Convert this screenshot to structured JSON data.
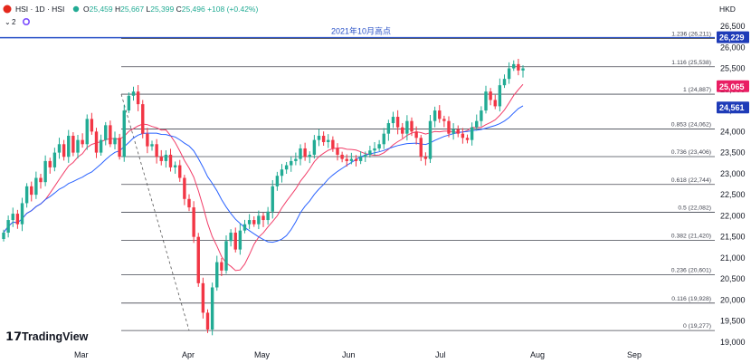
{
  "header": {
    "symbol": "HSI · 1D · HSI",
    "ohlc": [
      {
        "k": "O",
        "v": "25,459"
      },
      {
        "k": "H",
        "v": "25,667"
      },
      {
        "k": "L",
        "v": "25,399"
      },
      {
        "k": "C",
        "v": "25,496 +108 (+0.42%)"
      }
    ],
    "indicator_count": "2",
    "currency": "HKD",
    "logo_text": "TradingView"
  },
  "colors": {
    "up": "#22ab94",
    "down": "#f23645",
    "ma_fast": "#f23f6a",
    "ma_slow": "#2962ff",
    "label_red": "#e91e63",
    "label_blue": "#1e3bb8"
  },
  "chart_data": {
    "type": "candlestick",
    "y_axis": {
      "min": 19000,
      "max": 26500,
      "ticks": [
        19000,
        19500,
        20000,
        20500,
        21000,
        21500,
        22000,
        22500,
        23000,
        23500,
        24000,
        24500,
        25000,
        25500,
        26000,
        26500
      ]
    },
    "x_axis": {
      "labels": [
        "Mar",
        "Apr",
        "May",
        "Jun",
        "Jul",
        "Aug",
        "Sep"
      ]
    },
    "annotation": "2021年10月高点",
    "high_line": 26229,
    "fib_levels": [
      {
        "label": "1.236 (26,211)",
        "value": 26211
      },
      {
        "label": "1.116 (25,538)",
        "value": 25538
      },
      {
        "label": "1 (24,887)",
        "value": 24887
      },
      {
        "label": "0.853 (24,062)",
        "value": 24062
      },
      {
        "label": "0.736 (23,406)",
        "value": 23406
      },
      {
        "label": "0.618 (22,744)",
        "value": 22744
      },
      {
        "label": "0.5 (22,082)",
        "value": 22082
      },
      {
        "label": "0.382 (21,420)",
        "value": 21420
      },
      {
        "label": "0.236 (20,601)",
        "value": 20601
      },
      {
        "label": "0.116 (19,928)",
        "value": 19928
      },
      {
        "label": "0 (19,277)",
        "value": 19277
      }
    ],
    "price_tags": [
      {
        "text": "26,229",
        "value": 26229,
        "color": "#1e3bb8"
      },
      {
        "text": "25,065",
        "value": 25065,
        "color": "#e91e63"
      },
      {
        "text": "24,561",
        "value": 24561,
        "color": "#1e3bb8"
      }
    ],
    "closes": [
      21600,
      21900,
      22050,
      21800,
      22300,
      22700,
      22500,
      22900,
      22800,
      23300,
      23150,
      23500,
      23700,
      23400,
      23900,
      23500,
      23800,
      23700,
      24300,
      24000,
      23500,
      23800,
      24150,
      23700,
      23850,
      23400,
      24500,
      24850,
      24950,
      24650,
      23950,
      23650,
      23700,
      23400,
      23300,
      23450,
      23150,
      23200,
      22900,
      22400,
      22200,
      21500,
      20400,
      19700,
      19300,
      20300,
      20900,
      20700,
      21400,
      21600,
      21200,
      21650,
      21800,
      21900,
      21800,
      22000,
      21900,
      22100,
      22700,
      22950,
      23100,
      23200,
      23300,
      23350,
      23600,
      23400,
      23450,
      23800,
      23900,
      23750,
      23800,
      23600,
      23450,
      23350,
      23300,
      23350,
      23300,
      23400,
      23450,
      23550,
      23600,
      23700,
      23950,
      24200,
      24350,
      24100,
      23950,
      24250,
      24000,
      23850,
      23400,
      23350,
      24250,
      24500,
      24300,
      24250,
      23950,
      24050,
      23950,
      23850,
      23800,
      24100,
      24250,
      24500,
      24950,
      24750,
      24600,
      25100,
      25250,
      25500,
      25600,
      25450,
      25500
    ]
  }
}
